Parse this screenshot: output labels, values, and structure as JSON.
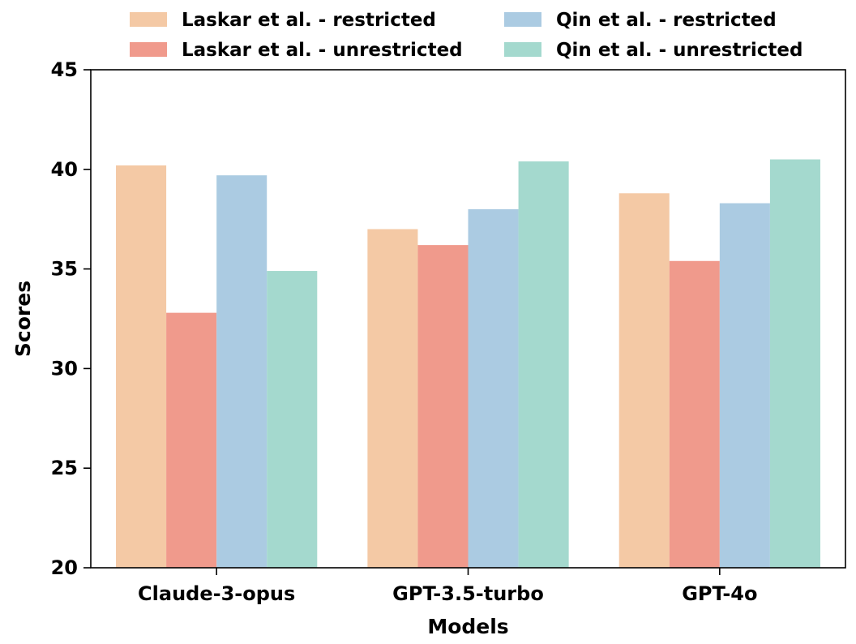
{
  "chart_data": {
    "type": "bar",
    "xlabel": "Models",
    "ylabel": "Scores",
    "ylim": [
      20,
      45
    ],
    "yticks": [
      20,
      25,
      30,
      35,
      40,
      45
    ],
    "categories": [
      "Claude-3-opus",
      "GPT-3.5-turbo",
      "GPT-4o"
    ],
    "series": [
      {
        "name": "Laskar et al. - restricted",
        "color": "#f4c9a5",
        "values": [
          40.2,
          37.0,
          38.8
        ]
      },
      {
        "name": "Laskar et al. - unrestricted",
        "color": "#f09a8c",
        "values": [
          32.8,
          36.2,
          35.4
        ]
      },
      {
        "name": "Qin et al. - restricted",
        "color": "#abcbe2",
        "values": [
          39.7,
          38.0,
          38.3
        ]
      },
      {
        "name": "Qin et al. - unrestricted",
        "color": "#a4d9ce",
        "values": [
          34.9,
          40.4,
          40.5
        ]
      }
    ],
    "legend": "top, two columns, outside plot",
    "grid": false
  }
}
